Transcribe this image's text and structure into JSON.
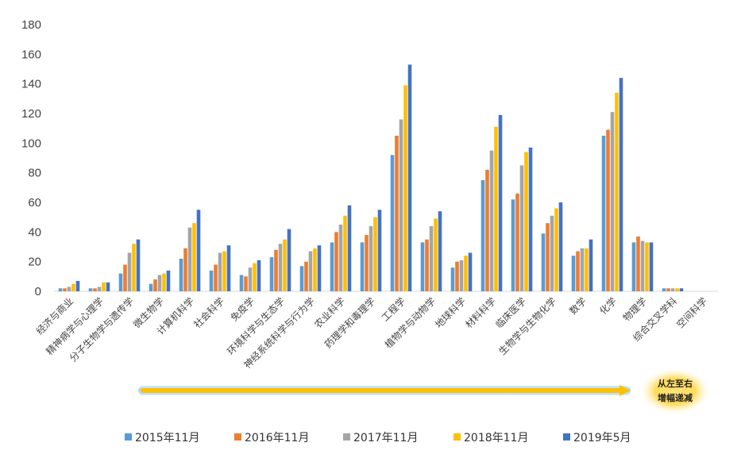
{
  "chart_data": {
    "type": "bar",
    "title": "",
    "xlabel": "",
    "ylabel": "",
    "ylim": [
      0,
      180
    ],
    "yticks": [
      0,
      20,
      40,
      60,
      80,
      100,
      120,
      140,
      160,
      180
    ],
    "grid": false,
    "legend_position": "bottom",
    "categories": [
      "经济与商业",
      "精神病学与心理学",
      "分子生物学与遗传学",
      "微生物学",
      "计算机科学",
      "社会科学",
      "免疫学",
      "环境科学与生态学",
      "神经系统科学与行为学",
      "农业科学",
      "药理学和毒理学",
      "工程学",
      "植物学与动物学",
      "地球科学",
      "材料科学",
      "临床医学",
      "生物学与生物化学",
      "数学",
      "化学",
      "物理学",
      "综合交叉学科",
      "空间科学"
    ],
    "series": [
      {
        "name": "2015年11月",
        "color": "#5B9BD5",
        "values": [
          2,
          2,
          12,
          5,
          22,
          14,
          11,
          23,
          17,
          33,
          33,
          92,
          33,
          16,
          75,
          62,
          39,
          24,
          105,
          33,
          2,
          0
        ]
      },
      {
        "name": "2016年11月",
        "color": "#ED7D31",
        "values": [
          2,
          2,
          18,
          8,
          29,
          18,
          10,
          28,
          20,
          40,
          38,
          105,
          35,
          20,
          82,
          66,
          46,
          27,
          109,
          37,
          2,
          0
        ]
      },
      {
        "name": "2017年11月",
        "color": "#A5A5A5",
        "values": [
          3,
          3,
          26,
          11,
          43,
          26,
          16,
          32,
          27,
          45,
          44,
          116,
          44,
          21,
          95,
          85,
          51,
          29,
          121,
          34,
          2,
          0
        ]
      },
      {
        "name": "2018年11月",
        "color": "#FFC000",
        "values": [
          5,
          6,
          32,
          12,
          46,
          27,
          19,
          35,
          29,
          51,
          50,
          139,
          49,
          24,
          111,
          94,
          56,
          29,
          134,
          33,
          2,
          0
        ]
      },
      {
        "name": "2019年5月",
        "color": "#4472C4",
        "values": [
          7,
          6,
          35,
          14,
          55,
          31,
          21,
          42,
          31,
          58,
          55,
          153,
          54,
          26,
          119,
          97,
          60,
          35,
          144,
          33,
          2,
          0
        ]
      }
    ],
    "annotation": {
      "line1": "从左至右",
      "line2": "增幅递减",
      "arrow_color": "#FFC000",
      "glow_color": "#FFD84A"
    }
  }
}
